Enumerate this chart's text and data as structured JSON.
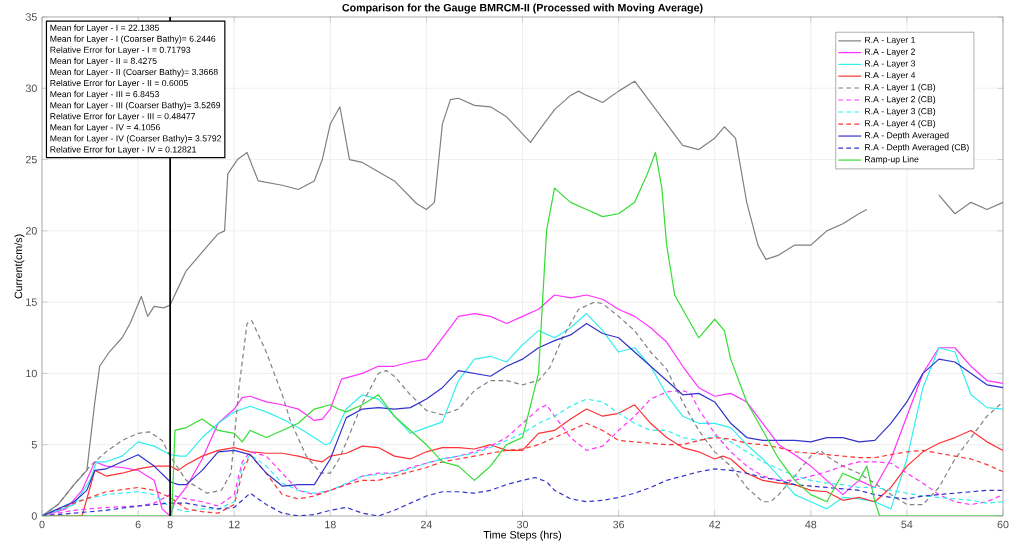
{
  "chart_data": {
    "type": "line",
    "title": "Comparison for the Gauge BMRCM-II (Processed with Moving Average)",
    "xlabel": "Time Steps (hrs)",
    "ylabel": "Current(cm/s)",
    "xlim": [
      0,
      60
    ],
    "ylim": [
      0,
      35
    ],
    "xticks": [
      0,
      6,
      8,
      12,
      18,
      24,
      30,
      36,
      42,
      48,
      54,
      60
    ],
    "yticks": [
      0,
      5,
      10,
      15,
      20,
      25,
      30,
      35
    ],
    "grid": true,
    "legend": "top right",
    "annotations": [
      "Mean for Layer - I = 22.1385",
      "Mean for Layer - I (Coarser Bathy)= 6.2446",
      "Relative Error for Layer - I = 0.71793",
      "Mean for Layer - II = 8.4275",
      "Mean for Layer - II (Coarser Bathy)= 3.3668",
      "Relative Error for Layer - II = 0.6005",
      "Mean for Layer - III = 6.8453",
      "Mean for Layer - III (Coarser Bathy)= 3.5269",
      "Relative Error for Layer - III = 0.48477",
      "Mean for Layer - IV = 4.1056",
      "Mean for Layer - IV (Coarser Bathy)= 3.5792",
      "Relative Error for Layer - IV = 0.12821"
    ],
    "ref_lines": [
      {
        "axis": "x",
        "value": 8,
        "color": "#000000"
      }
    ],
    "series": [
      {
        "name": "R.A - Layer 1",
        "color": "#808080",
        "line_style": "solid",
        "x": [
          0,
          1,
          2,
          2.8,
          3.3,
          3.6,
          4.2,
          5,
          5.5,
          6.2,
          6.6,
          7,
          7.6,
          8,
          8.5,
          9,
          10,
          11,
          11.4,
          11.6,
          12.2,
          12.8,
          13.5,
          15,
          16,
          17,
          17.5,
          18,
          18.6,
          19.2,
          20,
          22,
          23.4,
          24,
          24.5,
          25,
          25.5,
          26,
          27,
          28,
          29,
          30,
          30.5,
          31,
          32,
          33,
          33.5,
          34,
          35,
          36,
          37,
          38,
          39,
          40,
          41,
          42,
          42.6,
          43.3,
          44,
          44.7,
          45.2,
          46,
          47,
          48,
          48.5,
          49,
          50,
          51,
          51.5,
          53,
          56,
          57,
          58,
          59,
          60
        ],
        "values": [
          0,
          0.8,
          2.2,
          3.2,
          8,
          10.5,
          11.5,
          12.5,
          13.5,
          15.4,
          14.0,
          14.7,
          14.6,
          14.8,
          16,
          17.2,
          18.5,
          19.8,
          20,
          24,
          25,
          25.5,
          23.5,
          23.2,
          22.9,
          23.5,
          25,
          27.5,
          28.7,
          25,
          24.8,
          23.5,
          21.9,
          21.5,
          22,
          27.5,
          29.2,
          29.3,
          28.8,
          28.7,
          28,
          26.8,
          26.2,
          27,
          28.5,
          29.5,
          29.8,
          29.5,
          29,
          29.8,
          30.5,
          29,
          27.5,
          26,
          25.7,
          26.5,
          27.3,
          26.5,
          22,
          19,
          18,
          18.3,
          19,
          19,
          19.5,
          20,
          20.5,
          21.2,
          21.5,
          null,
          22.5,
          21.2,
          22,
          21.5,
          22
        ]
      },
      {
        "name": "R.A - Layer 2",
        "color": "#ff33ff",
        "line_style": "solid",
        "x": [
          0,
          1.5,
          2.5,
          3.3,
          4,
          5,
          6,
          7,
          7.5,
          8,
          8.3,
          9,
          10,
          11,
          12,
          12.5,
          13,
          14,
          15,
          16,
          17,
          17.5,
          18,
          18.7,
          20,
          21,
          22,
          23,
          24,
          25,
          26,
          27,
          28,
          29,
          30,
          31,
          32,
          33,
          34,
          35,
          36,
          37,
          38,
          39,
          40,
          41,
          42,
          43,
          44,
          45,
          46,
          47,
          48,
          49,
          50,
          51,
          52,
          53,
          54,
          55,
          56,
          57,
          58,
          59,
          60
        ],
        "values": [
          0,
          0.5,
          1.8,
          3.8,
          3.5,
          3.4,
          3.2,
          2.5,
          0.5,
          0,
          1,
          2,
          4,
          6.5,
          7.5,
          8.3,
          8.4,
          8,
          7.8,
          7.5,
          6.7,
          6.8,
          7.5,
          9.6,
          10,
          10.5,
          10.5,
          10.8,
          11,
          12.5,
          14,
          14.2,
          14,
          13.5,
          14,
          14.5,
          15.5,
          15.3,
          15.5,
          15.2,
          14.5,
          14,
          13.2,
          12.2,
          10.5,
          9,
          8.4,
          8.6,
          8,
          6.5,
          5,
          4.3,
          3.5,
          2.5,
          1.5,
          2.5,
          2.0,
          4,
          7,
          10,
          11.8,
          11.8,
          10.5,
          9.5,
          9.3
        ]
      },
      {
        "name": "R.A - Layer 3",
        "color": "#33eeee",
        "line_style": "solid",
        "x": [
          0,
          2,
          3,
          3.4,
          4,
          5,
          6,
          7,
          8,
          8.6,
          9,
          10,
          11,
          12,
          13,
          14,
          15,
          16,
          17,
          17.7,
          18,
          19,
          20,
          21,
          22,
          23,
          24,
          25,
          26,
          27,
          28,
          29,
          30,
          31,
          32,
          33,
          34,
          35,
          36,
          37,
          38,
          38.5,
          39,
          40,
          41,
          42,
          43,
          44,
          45,
          46,
          47,
          48,
          49,
          50,
          51,
          52,
          53,
          54,
          55,
          56,
          57,
          58,
          59,
          60
        ],
        "values": [
          0,
          0.8,
          2.5,
          3.8,
          3.8,
          4.2,
          5.2,
          4.9,
          4.3,
          4.2,
          4.2,
          5.5,
          6.5,
          7.3,
          7.7,
          7.3,
          6.8,
          6.2,
          5.5,
          5,
          5.1,
          7.5,
          8.5,
          8.2,
          7,
          5.8,
          6.2,
          6.6,
          9.5,
          11,
          11.2,
          10.8,
          12,
          13,
          12.5,
          13.2,
          14.2,
          13,
          11.5,
          11.8,
          10.5,
          9.5,
          8.5,
          7,
          6.5,
          6.5,
          6.2,
          5,
          4,
          2.8,
          1.5,
          1,
          0.5,
          1.3,
          1.2,
          1,
          0.5,
          4,
          9,
          11.8,
          11.5,
          8.5,
          7.6,
          7.5
        ]
      },
      {
        "name": "R.A - Layer 4",
        "color": "#ff3333",
        "line_style": "solid",
        "x": [
          0,
          2.5,
          3,
          3.3,
          4,
          5,
          6,
          7,
          8,
          8.5,
          9,
          10,
          11,
          12,
          13,
          14,
          15,
          16,
          17,
          17.5,
          18,
          19,
          20,
          21,
          22,
          23,
          24,
          25,
          26,
          27,
          28,
          29,
          30,
          31,
          32,
          33,
          34,
          35,
          36,
          37,
          38,
          39,
          40,
          41,
          42,
          42.5,
          43,
          44,
          45,
          46,
          47,
          48,
          49,
          50,
          51,
          52,
          53,
          54,
          55,
          56,
          57,
          58,
          59,
          60
        ],
        "values": [
          0,
          0,
          2,
          3.2,
          2.8,
          3,
          3.3,
          3.5,
          3.5,
          3.2,
          3.6,
          4.2,
          4.6,
          4.8,
          4.5,
          4.4,
          4.4,
          4.2,
          3.9,
          3.8,
          4.2,
          4.4,
          4.9,
          4.8,
          4.2,
          4.0,
          4.5,
          4.8,
          4.8,
          4.7,
          5.0,
          4.6,
          4.6,
          5.8,
          6,
          6.8,
          7.5,
          7.0,
          7.2,
          7.8,
          6.5,
          5.5,
          4.8,
          4.5,
          4.0,
          4.2,
          4.0,
          3.0,
          2.5,
          2.3,
          2.2,
          1.8,
          1.7,
          1.1,
          1.3,
          1,
          2,
          3.5,
          4.5,
          5.1,
          5.5,
          6.0,
          5.2,
          4.6
        ]
      },
      {
        "name": "R.A - Layer 1 (CB)",
        "color": "#808080",
        "line_style": "dashed",
        "x": [
          0,
          1,
          2,
          3,
          4,
          5,
          6,
          6.7,
          7.5,
          8,
          9,
          10.3,
          11.2,
          11.8,
          12.3,
          12.8,
          13.1,
          14,
          15,
          15.5,
          16.5,
          17.4,
          18,
          18.6,
          19.3,
          20,
          21,
          21.5,
          22,
          23,
          24,
          25,
          26,
          27,
          28,
          29,
          30,
          31,
          31.7,
          32.5,
          33.5,
          34.5,
          35,
          36,
          37,
          38,
          39,
          40,
          41,
          42,
          43,
          44,
          45,
          45.5,
          46,
          47,
          48,
          48.6,
          49,
          50,
          51,
          52,
          53,
          54,
          55,
          56,
          57,
          58,
          59,
          60
        ],
        "values": [
          0,
          0.8,
          2.2,
          3.5,
          4.5,
          5.3,
          5.8,
          5.9,
          5.3,
          4.2,
          2.5,
          1.6,
          1.8,
          3,
          9,
          13.5,
          13.7,
          11.5,
          8.5,
          6.7,
          4.2,
          3.0,
          3,
          4.1,
          6,
          7.9,
          10,
          10.2,
          9.8,
          8.5,
          7.4,
          7.1,
          7.5,
          8.8,
          9.5,
          9.5,
          9.2,
          9.5,
          10.4,
          12.5,
          14.5,
          15,
          14.9,
          14,
          13,
          11.5,
          10.3,
          8,
          6,
          4.5,
          3.5,
          2,
          1,
          1.0,
          1.5,
          2.8,
          4.2,
          4.6,
          4.2,
          3.5,
          3,
          2.3,
          1.5,
          0.8,
          0.8,
          2,
          4,
          5.5,
          7,
          8
        ]
      },
      {
        "name": "R.A - Layer 2 (CB)",
        "color": "#ff33ff",
        "line_style": "dashed",
        "x": [
          0,
          2,
          4,
          6,
          7,
          8,
          9,
          10,
          11,
          12,
          12.5,
          13,
          14,
          15,
          16,
          17,
          18,
          19,
          20,
          21,
          22,
          23,
          24,
          25,
          26,
          27,
          28,
          29,
          30,
          31,
          31.5,
          32,
          33,
          34,
          35,
          36,
          37,
          38,
          39,
          40,
          40.5,
          41,
          42,
          43,
          44,
          45,
          46,
          47,
          48,
          49,
          50,
          51,
          52,
          53,
          54,
          55,
          56,
          57,
          58,
          59,
          60
        ],
        "values": [
          0,
          0.4,
          0.6,
          0.7,
          0.9,
          1.5,
          1.2,
          1,
          0.7,
          1.5,
          3.8,
          4.5,
          4.2,
          3,
          1.8,
          1.5,
          1.8,
          2.2,
          2.8,
          3,
          3,
          3.4,
          3.7,
          4.0,
          4.2,
          4.5,
          4.9,
          5.5,
          6.5,
          7.5,
          7.8,
          7,
          5.5,
          4.6,
          4.9,
          6,
          7,
          8.2,
          8.7,
          8.8,
          8.6,
          7.5,
          5.8,
          4.5,
          3.5,
          2.8,
          2.5,
          2.5,
          2.8,
          3.1,
          3.5,
          3.8,
          3.8,
          3.7,
          3,
          2.3,
          1.5,
          1,
          0.8,
          1,
          1.5
        ]
      },
      {
        "name": "R.A - Layer 3 (CB)",
        "color": "#33eeee",
        "line_style": "dashed",
        "x": [
          0,
          2,
          4,
          6,
          7,
          8,
          9,
          10,
          11,
          12,
          12.5,
          13,
          14,
          15,
          16,
          17,
          18,
          19,
          20,
          21,
          22,
          23,
          24,
          25,
          26,
          27,
          28,
          29,
          30,
          31,
          32,
          33,
          34,
          35,
          36,
          37,
          38,
          39,
          40,
          41,
          42,
          43,
          44,
          45,
          46,
          47,
          48,
          49,
          50,
          51,
          52,
          53,
          54,
          55,
          56,
          57,
          58,
          59,
          60
        ],
        "values": [
          0,
          1,
          1.5,
          1.7,
          1.5,
          0.6,
          0.3,
          0.5,
          0.5,
          1,
          3.5,
          4.3,
          3.5,
          2.3,
          1.8,
          1.6,
          1.8,
          2.3,
          2.8,
          2.9,
          3,
          3.3,
          3.7,
          4.0,
          4.2,
          4.4,
          4.8,
          5.3,
          5.8,
          6.5,
          7.0,
          7.7,
          8.2,
          8,
          7.2,
          6.5,
          6,
          6,
          5.5,
          5.3,
          5.6,
          5.2,
          4.5,
          3.8,
          3.3,
          2.8,
          2.5,
          2.3,
          2.2,
          2,
          2,
          1.8,
          1.6,
          1.4,
          1.3,
          1.2,
          1.1,
          0.9,
          1.0
        ]
      },
      {
        "name": "R.A - Layer 4 (CB)",
        "color": "#ff3333",
        "line_style": "dashed",
        "x": [
          0,
          2,
          4,
          6,
          7,
          8,
          9,
          10,
          11,
          12,
          12.5,
          13,
          14,
          15,
          16,
          17,
          18,
          19,
          20,
          21,
          22,
          23,
          24,
          25,
          26,
          27,
          28,
          29,
          30,
          31,
          32,
          33,
          34,
          35,
          36,
          37,
          38,
          39,
          40,
          41,
          42,
          43,
          44,
          45,
          46,
          47,
          48,
          49,
          50,
          51,
          52,
          53,
          54,
          55,
          56,
          57,
          58,
          59,
          60
        ],
        "values": [
          0,
          0.9,
          1.7,
          2.0,
          1.8,
          1.3,
          0.5,
          0.3,
          0.2,
          0.8,
          3,
          4.3,
          3,
          1.5,
          1.2,
          1.4,
          1.8,
          2.2,
          2.5,
          2.5,
          2.8,
          3.1,
          3.4,
          3.8,
          4.0,
          4.2,
          4.4,
          4.6,
          4.7,
          5.0,
          5.5,
          6.0,
          6.5,
          6,
          5.3,
          5.2,
          5.1,
          5.0,
          5.0,
          5.3,
          5.5,
          5.4,
          5.1,
          5.0,
          4.8,
          4.5,
          4.4,
          4.3,
          4.2,
          4.1,
          4.1,
          4.3,
          4.5,
          4.6,
          4.4,
          4.2,
          4.0,
          3.6,
          3.1
        ]
      },
      {
        "name": "R.A - Depth Averaged",
        "color": "#3333cc",
        "line_style": "solid",
        "x": [
          0,
          2,
          2.8,
          3.3,
          4,
          5,
          6,
          7,
          8,
          8.5,
          9,
          10,
          11,
          12,
          13,
          14,
          15,
          16,
          17,
          18,
          19,
          20,
          21,
          22,
          23,
          24,
          25,
          26,
          27,
          28,
          29,
          30,
          31,
          32,
          33,
          34,
          35,
          36,
          37,
          38,
          39,
          40,
          41,
          42,
          43,
          44,
          45,
          46,
          47,
          48,
          49,
          50,
          51,
          52,
          53,
          54,
          55,
          56,
          57,
          58,
          59,
          60
        ],
        "values": [
          0,
          1,
          1.8,
          3.2,
          3.3,
          3.8,
          4.3,
          3.5,
          2.4,
          2.2,
          2.2,
          3.2,
          4.5,
          4.6,
          4.3,
          3,
          2.1,
          2.2,
          2.2,
          4,
          6.9,
          7.5,
          7.6,
          7.5,
          7.6,
          8.2,
          9,
          10.2,
          10,
          9.8,
          10.5,
          11,
          11.8,
          12.3,
          12.7,
          13.5,
          12.8,
          12.5,
          11.5,
          10.5,
          9.5,
          8.5,
          8.6,
          8.0,
          6.5,
          5.5,
          5.3,
          5.3,
          5.3,
          5.2,
          5.5,
          5.5,
          5.2,
          5.3,
          6.5,
          8,
          10,
          11,
          10.8,
          10,
          9.2,
          9
        ]
      },
      {
        "name": "R.A - Depth Averaged (CB)",
        "color": "#3333cc",
        "line_style": "dashed",
        "x": [
          0,
          2,
          4,
          6,
          7,
          8,
          9,
          10,
          11,
          12,
          13,
          14,
          15,
          16,
          17,
          18,
          19,
          20,
          21,
          22,
          23,
          24,
          25,
          26,
          27,
          28,
          29,
          30,
          30.8,
          31.5,
          32,
          33,
          34,
          35,
          36,
          37,
          38,
          39,
          40,
          41,
          42,
          43,
          44,
          45,
          46,
          47,
          48,
          49,
          50,
          51,
          52,
          53,
          54,
          55,
          56,
          57,
          58,
          59,
          60
        ],
        "values": [
          0,
          0.2,
          0.4,
          0.7,
          0.8,
          0.9,
          0.9,
          0.7,
          0.5,
          0.6,
          1.6,
          0.8,
          0.2,
          0,
          0.1,
          0.4,
          0.6,
          0.2,
          0,
          0.4,
          0.9,
          1.4,
          1.7,
          1.7,
          1.6,
          1.8,
          2.2,
          2.5,
          2.7,
          2.4,
          1.8,
          1.2,
          1.0,
          1.1,
          1.3,
          1.6,
          2.0,
          2.5,
          2.8,
          3.1,
          3.3,
          3.2,
          3.0,
          2.7,
          2.5,
          2.2,
          2.1,
          2.0,
          1.9,
          1.8,
          1.5,
          1.3,
          1.2,
          1.4,
          1.5,
          1.6,
          1.7,
          1.8,
          1.8
        ]
      },
      {
        "name": "Ramp-up Line",
        "color": "#33dd33",
        "line_style": "solid",
        "x": [
          0,
          8.1,
          8.3,
          9,
          10,
          11,
          12,
          12.5,
          13,
          14,
          15,
          16,
          17,
          18,
          18.5,
          19,
          20,
          21,
          22,
          23,
          24,
          25,
          26,
          27,
          27.5,
          28,
          29,
          30,
          31,
          31.5,
          32,
          33,
          34,
          35,
          36,
          37,
          37.8,
          38.3,
          38.7,
          39,
          39.5,
          40,
          41,
          42,
          42.6,
          43,
          44,
          45,
          46,
          47,
          48,
          49,
          50,
          51,
          51.5,
          52,
          52.3,
          60
        ],
        "values": [
          0,
          0,
          6,
          6.2,
          6.8,
          6,
          5.8,
          5.2,
          6,
          5.5,
          6,
          6.5,
          7.5,
          7.8,
          7.5,
          7.3,
          7.8,
          8.5,
          7,
          6,
          5,
          3.8,
          3.5,
          2.5,
          3,
          3.5,
          5,
          5.5,
          10,
          20,
          23,
          22,
          21.5,
          21,
          21.2,
          22,
          24,
          25.5,
          23,
          19,
          15.5,
          14.5,
          12.5,
          13.8,
          13,
          11,
          8,
          6,
          4,
          2.5,
          1.5,
          1,
          3,
          2.5,
          3.5,
          1,
          0,
          0
        ]
      }
    ]
  }
}
